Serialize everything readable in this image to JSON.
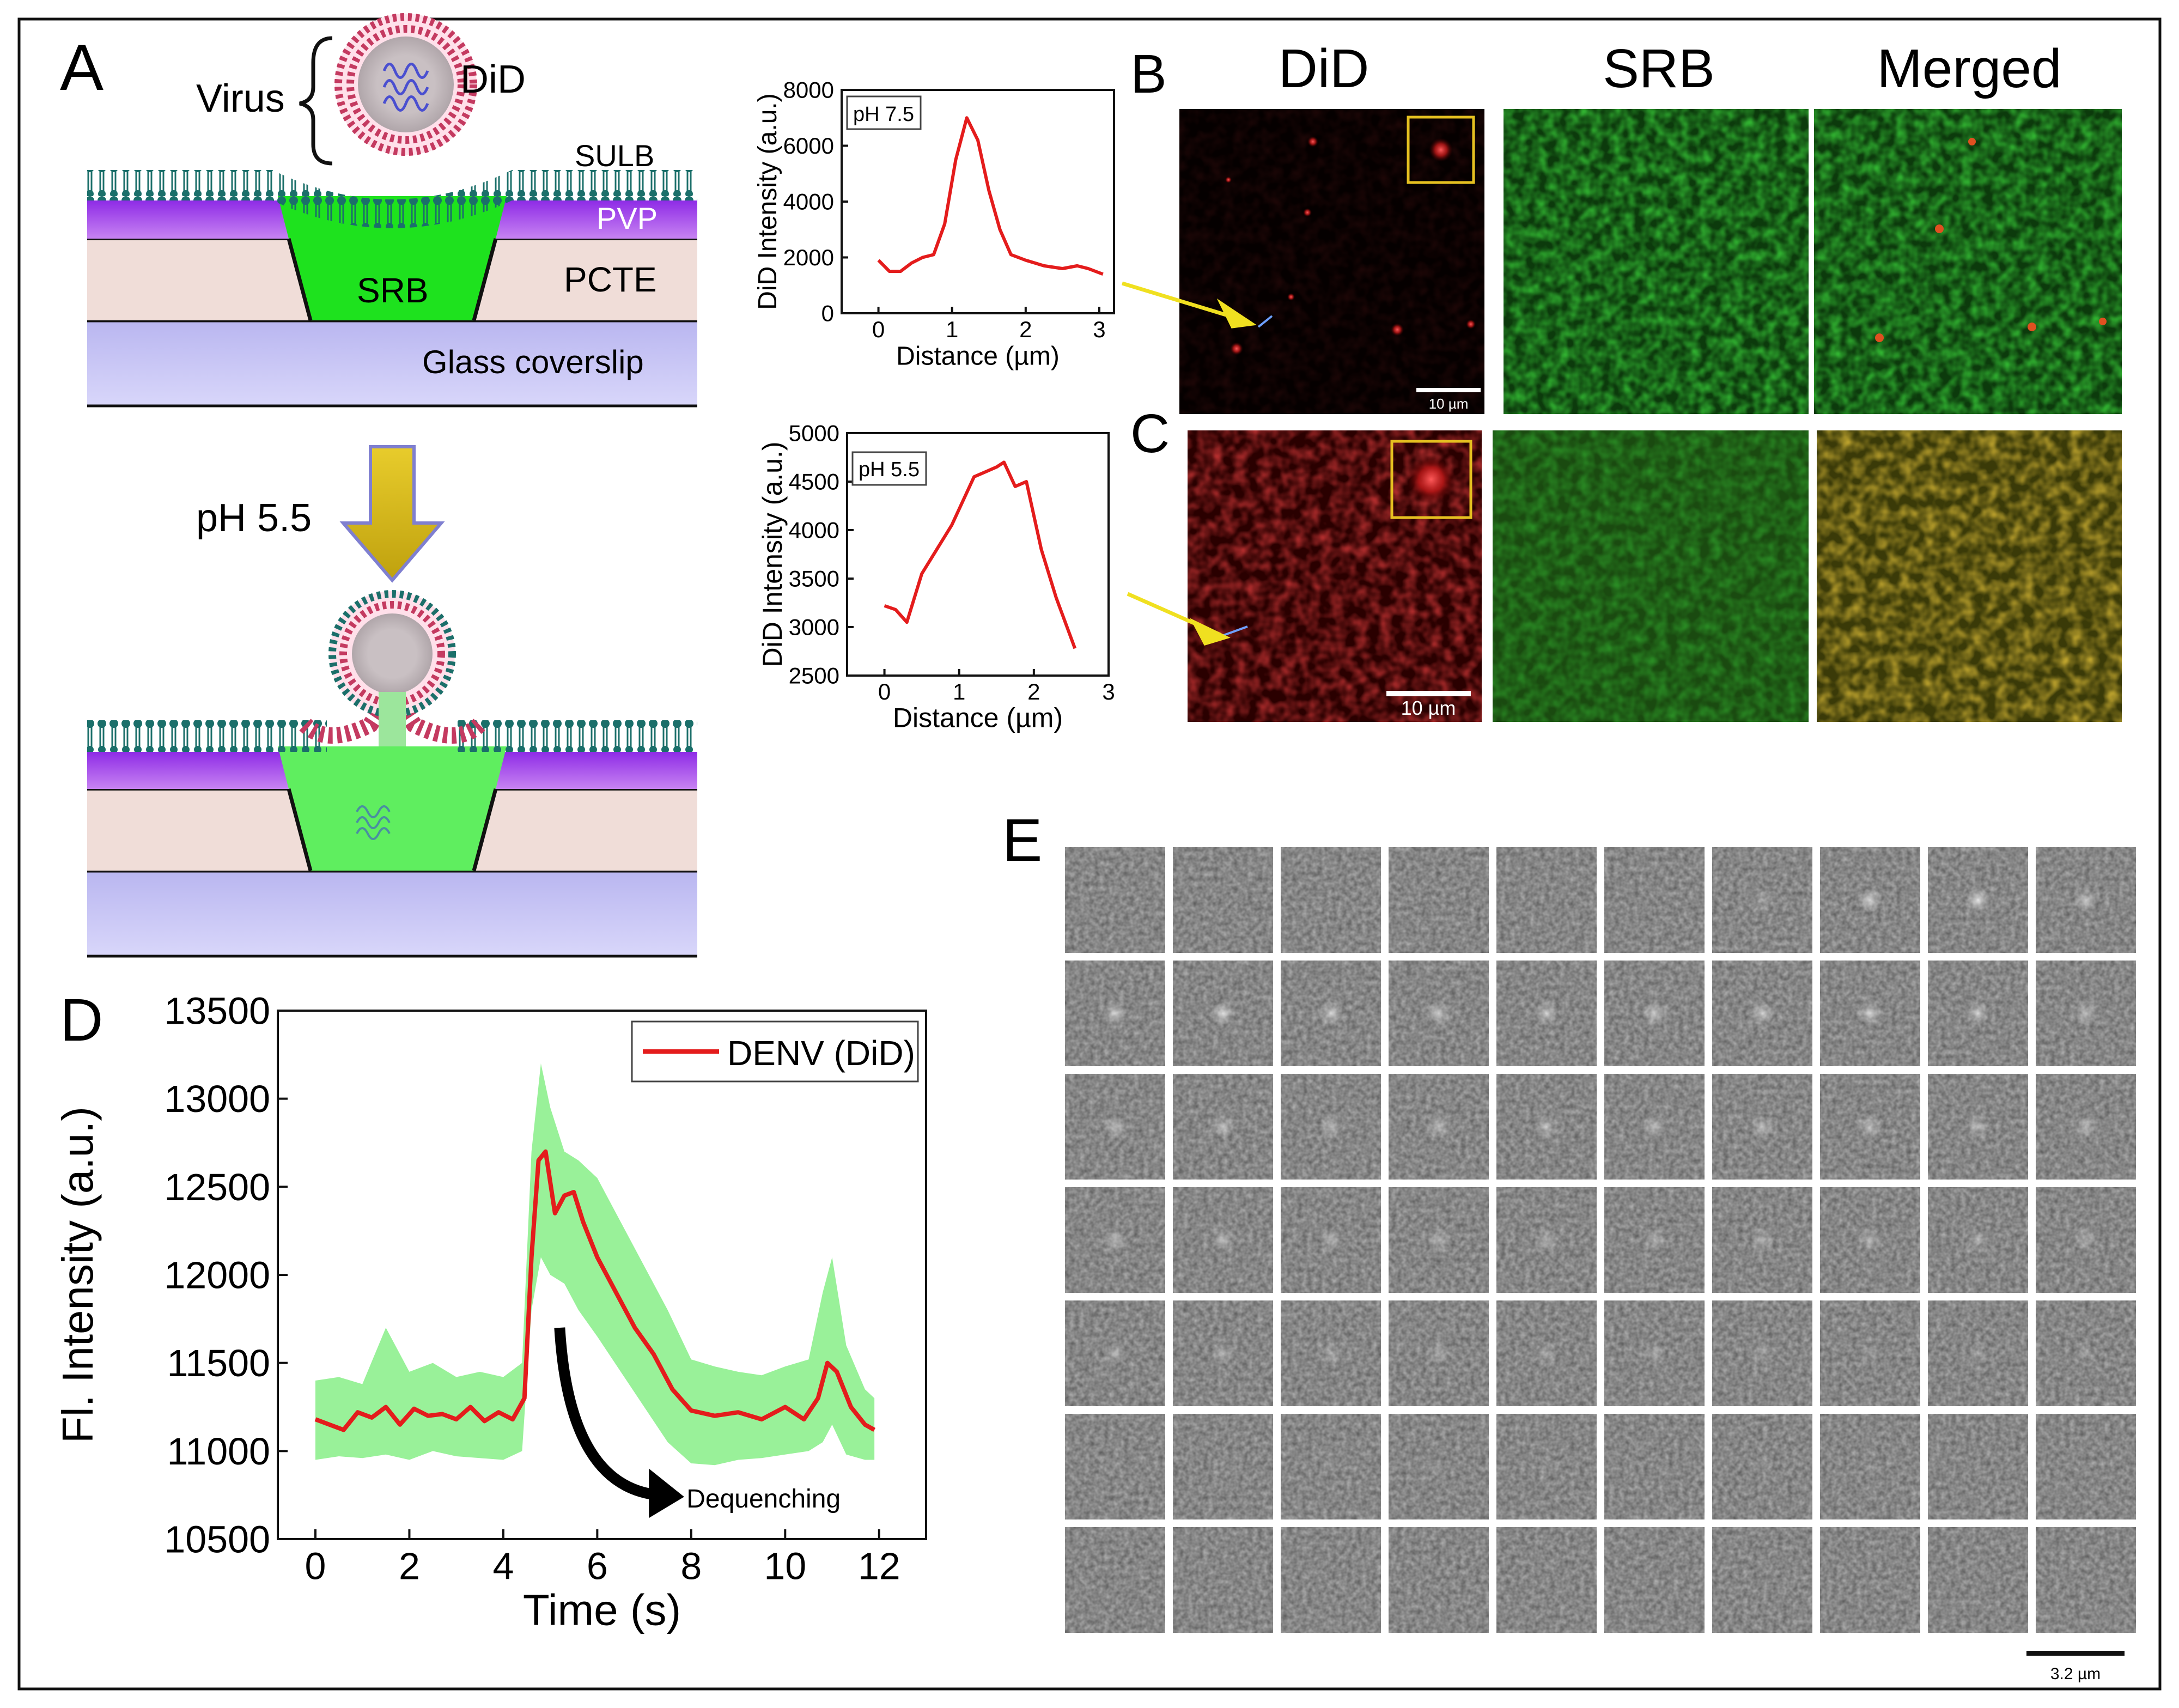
{
  "panels": {
    "a": "A",
    "b": "B",
    "c": "C",
    "d": "D",
    "e": "E"
  },
  "schematic": {
    "virus_label": "Virus",
    "dye_label": "DiD",
    "sulb_label": "SULB",
    "pvp_label": "PVP",
    "srb_label": "SRB",
    "pcte_label": "PCTE",
    "glass_label": "Glass coverslip",
    "ph_label": "pH 5.5"
  },
  "micrographs": {
    "col_headers": [
      "DiD",
      "SRB",
      "Merged"
    ],
    "scale_b": "10 µm",
    "scale_c": "10 µm"
  },
  "montage": {
    "scale_label": "3.2 µm",
    "rows": 7,
    "cols": 10,
    "spot_strength": [
      [
        0,
        0,
        0,
        0,
        0,
        0,
        0.25,
        0.7,
        0.8,
        0.55
      ],
      [
        0.6,
        0.75,
        0.65,
        0.6,
        0.55,
        0.6,
        0.6,
        0.65,
        0.55,
        0.5
      ],
      [
        0.5,
        0.5,
        0.45,
        0.5,
        0.5,
        0.45,
        0.5,
        0.5,
        0.45,
        0.45
      ],
      [
        0.45,
        0.45,
        0.4,
        0.4,
        0.4,
        0.35,
        0.4,
        0.4,
        0.35,
        0.35
      ],
      [
        0.35,
        0.35,
        0.3,
        0.3,
        0.3,
        0.3,
        0.25,
        0.2,
        0.2,
        0.2
      ],
      [
        0.1,
        0.1,
        0.1,
        0.1,
        0.1,
        0.05,
        0.1,
        0.1,
        0.05,
        0.05
      ],
      [
        0,
        0,
        0,
        0,
        0,
        0,
        0,
        0,
        0,
        0
      ]
    ]
  },
  "chart_data": [
    {
      "type": "line",
      "annotation": "pH 7.5",
      "xlabel": "Distance (µm)",
      "ylabel": "DiD Intensity (a.u.)",
      "xlim": [
        -0.5,
        3.2
      ],
      "ylim": [
        0,
        8000
      ],
      "xticks": [
        0,
        1,
        2,
        3
      ],
      "yticks": [
        0,
        2000,
        4000,
        6000,
        8000
      ],
      "series": [
        {
          "name": "pH 7.5",
          "x": [
            0,
            0.15,
            0.3,
            0.45,
            0.6,
            0.75,
            0.9,
            1.05,
            1.2,
            1.35,
            1.5,
            1.65,
            1.8,
            2.0,
            2.25,
            2.5,
            2.7,
            2.85,
            3.05
          ],
          "y": [
            1900,
            1500,
            1500,
            1800,
            2000,
            2100,
            3200,
            5500,
            7000,
            6200,
            4400,
            3000,
            2100,
            1900,
            1700,
            1600,
            1700,
            1600,
            1400
          ]
        }
      ]
    },
    {
      "type": "line",
      "annotation": "pH 5.5",
      "xlabel": "Distance (µm)",
      "ylabel": "DiD Intensity (a.u.)",
      "xlim": [
        -0.5,
        3.0
      ],
      "ylim": [
        2500,
        5000
      ],
      "xticks": [
        0,
        1,
        2,
        3
      ],
      "yticks": [
        2500,
        3000,
        3500,
        4000,
        4500,
        5000
      ],
      "series": [
        {
          "name": "pH 5.5",
          "x": [
            0,
            0.15,
            0.3,
            0.5,
            0.7,
            0.9,
            1.05,
            1.2,
            1.35,
            1.5,
            1.6,
            1.75,
            1.9,
            2.1,
            2.3,
            2.55
          ],
          "y": [
            3220,
            3180,
            3050,
            3550,
            3800,
            4050,
            4300,
            4550,
            4600,
            4650,
            4700,
            4450,
            4500,
            3800,
            3300,
            2780
          ]
        }
      ]
    },
    {
      "type": "line",
      "legend": "DENV (DiD)",
      "legend_position": "top-right",
      "annotation": "Dequenching",
      "xlabel": "Time (s)",
      "ylabel": "Fl. Intensity (a.u.)",
      "xlim": [
        -0.8,
        13
      ],
      "ylim": [
        10500,
        13500
      ],
      "xticks": [
        0,
        2,
        4,
        6,
        8,
        10,
        12
      ],
      "yticks": [
        10500,
        11000,
        11500,
        12000,
        12500,
        13000,
        13500
      ],
      "series": [
        {
          "name": "DENV (DiD)",
          "x": [
            0,
            0.3,
            0.6,
            0.9,
            1.2,
            1.5,
            1.8,
            2.1,
            2.4,
            2.7,
            3.0,
            3.3,
            3.6,
            3.9,
            4.2,
            4.45,
            4.6,
            4.75,
            4.9,
            5.1,
            5.3,
            5.5,
            5.7,
            6.0,
            6.4,
            6.8,
            7.2,
            7.6,
            8.0,
            8.5,
            9.0,
            9.5,
            10.0,
            10.4,
            10.7,
            10.9,
            11.1,
            11.4,
            11.7,
            11.9
          ],
          "y": [
            11180,
            11150,
            11120,
            11220,
            11190,
            11250,
            11150,
            11240,
            11200,
            11210,
            11180,
            11250,
            11170,
            11220,
            11180,
            11300,
            12100,
            12650,
            12700,
            12350,
            12450,
            12470,
            12300,
            12100,
            11900,
            11700,
            11550,
            11350,
            11230,
            11200,
            11220,
            11180,
            11250,
            11180,
            11300,
            11500,
            11450,
            11250,
            11150,
            11120
          ]
        }
      ],
      "band": {
        "x": [
          0,
          0.5,
          1.0,
          1.5,
          2.0,
          2.5,
          3.0,
          3.5,
          4.0,
          4.4,
          4.6,
          4.8,
          5.0,
          5.3,
          5.6,
          6.0,
          6.5,
          7.0,
          7.5,
          8.0,
          8.5,
          9.0,
          9.5,
          10.0,
          10.5,
          10.8,
          11.0,
          11.3,
          11.7,
          11.9
        ],
        "upper": [
          11400,
          11420,
          11380,
          11700,
          11450,
          11500,
          11420,
          11450,
          11420,
          11500,
          12700,
          13200,
          12950,
          12700,
          12650,
          12550,
          12300,
          12050,
          11800,
          11520,
          11480,
          11450,
          11430,
          11480,
          11520,
          11900,
          12100,
          11600,
          11350,
          11300
        ],
        "lower": [
          10950,
          10970,
          10960,
          10980,
          10950,
          11000,
          10970,
          10960,
          10950,
          11000,
          11800,
          12100,
          12000,
          11950,
          11800,
          11650,
          11450,
          11250,
          11050,
          10930,
          10920,
          10950,
          10960,
          10980,
          11000,
          11050,
          11150,
          10980,
          10950,
          10950
        ]
      }
    }
  ]
}
